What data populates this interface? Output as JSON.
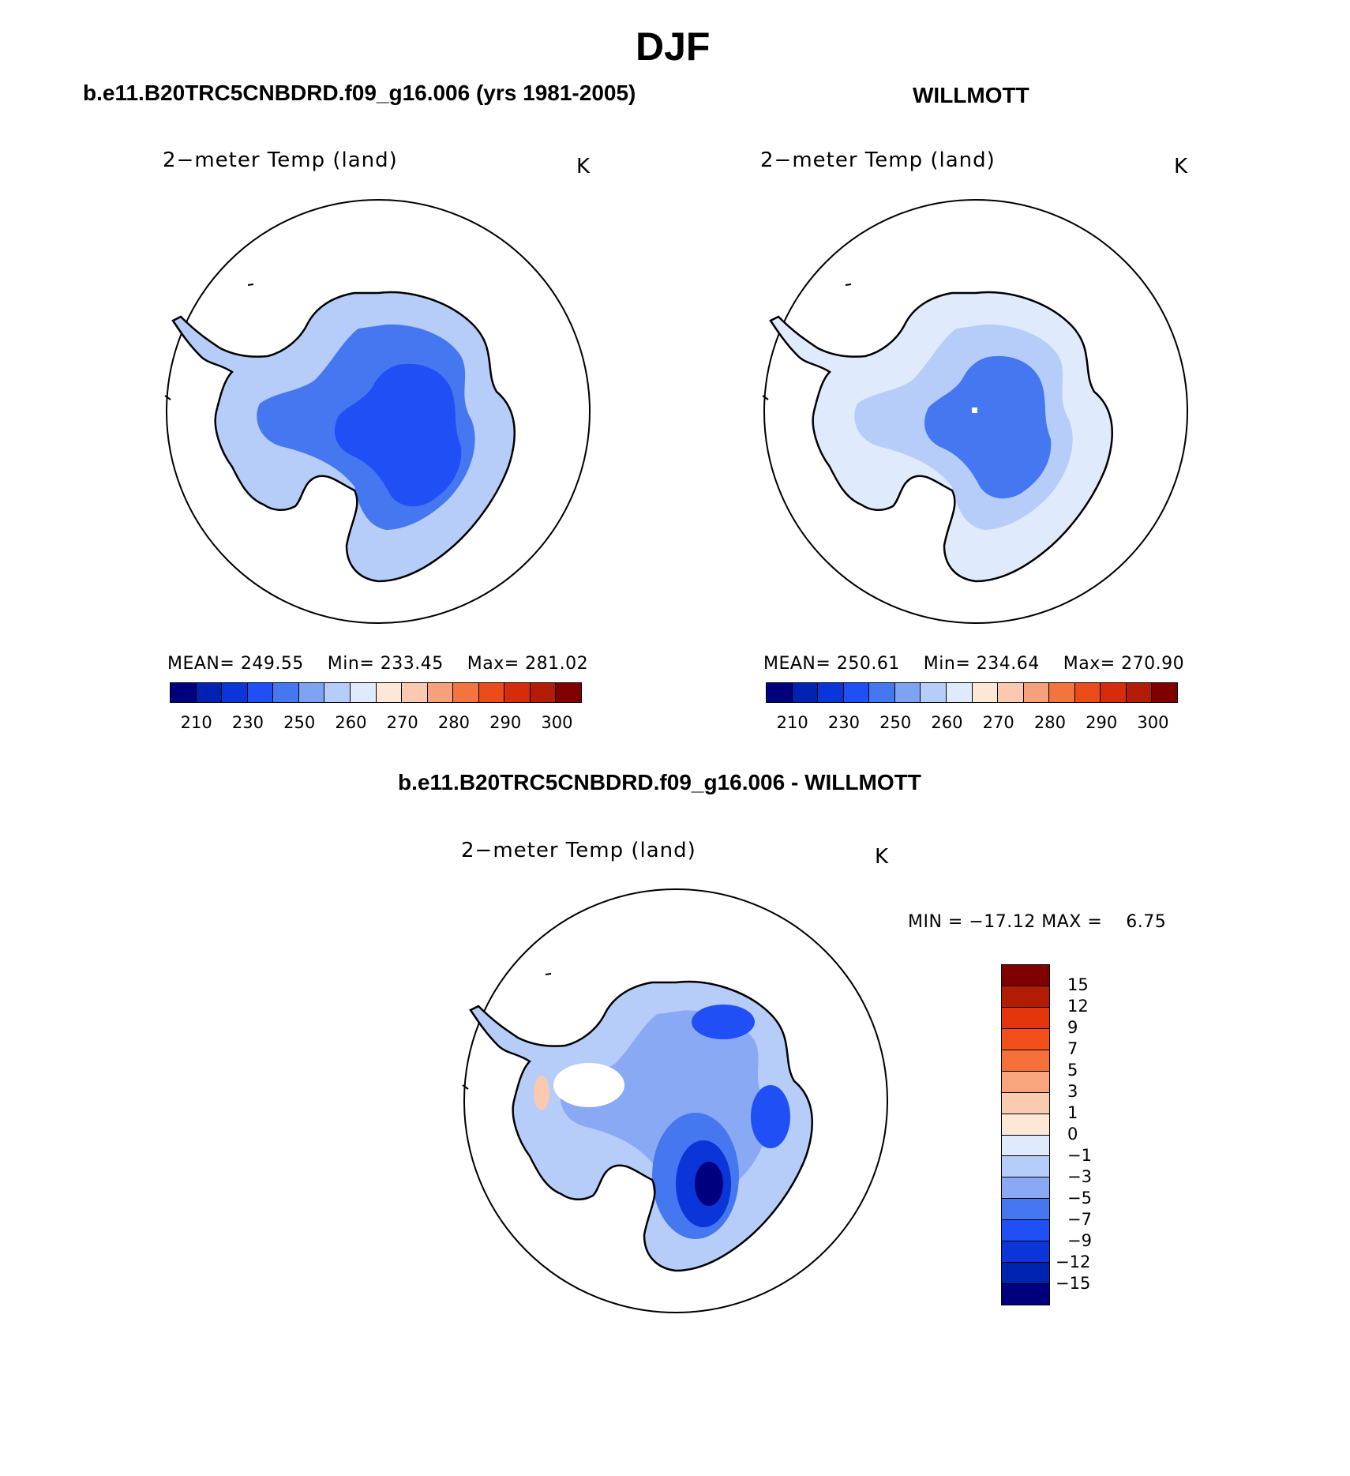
{
  "figure": {
    "title": "DJF",
    "panels": [
      {
        "id": "model",
        "heading": "b.e11.B20TRC5CNBDRD.f09_g16.006 (yrs 1981-2005)",
        "variable": "2−meter Temp (land)",
        "units": "K",
        "stats": {
          "mean_label": "MEAN=",
          "mean": "249.55",
          "min_label": "Min=",
          "min": "233.45",
          "max_label": "Max=",
          "max": "281.02"
        }
      },
      {
        "id": "obs",
        "heading": "WILLMOTT",
        "variable": "2−meter Temp (land)",
        "units": "K",
        "stats": {
          "mean_label": "MEAN=",
          "mean": "250.61",
          "min_label": "Min=",
          "min": "234.64",
          "max_label": "Max=",
          "max": "270.90"
        }
      },
      {
        "id": "diff",
        "heading": "b.e11.B20TRC5CNBDRD.f09_g16.006 - WILLMOTT",
        "variable": "2−meter Temp (land)",
        "units": "K",
        "minmax_text": "MIN = −17.12 MAX =    6.75"
      }
    ],
    "abs_colorbar": {
      "colors": [
        "#00007f",
        "#0022b0",
        "#0a35d9",
        "#1f4ff5",
        "#4577f0",
        "#7ea3f5",
        "#b6cdfa",
        "#dfebfd",
        "#fde7d6",
        "#fbc9b0",
        "#f6a07c",
        "#f2743f",
        "#ec4b1a",
        "#d62c09",
        "#b21c05",
        "#800000"
      ],
      "tick_labels": [
        "210",
        "230",
        "250",
        "260",
        "270",
        "280",
        "290",
        "300"
      ]
    },
    "diff_colorbar": {
      "colors": [
        "#800000",
        "#b21c05",
        "#e3340a",
        "#f44f1a",
        "#f6703a",
        "#f9a47c",
        "#fbcbb0",
        "#fde8d8",
        "#dfebfd",
        "#b6cdfa",
        "#8aa9f5",
        "#4577f0",
        "#1f4ff5",
        "#0a35d9",
        "#0022b0",
        "#00007f"
      ],
      "tick_labels": [
        "15",
        "12",
        "9",
        "7",
        "5",
        "3",
        "1",
        "0",
        "−1",
        "−3",
        "−5",
        "−7",
        "−9",
        "−12",
        "−15"
      ]
    }
  }
}
